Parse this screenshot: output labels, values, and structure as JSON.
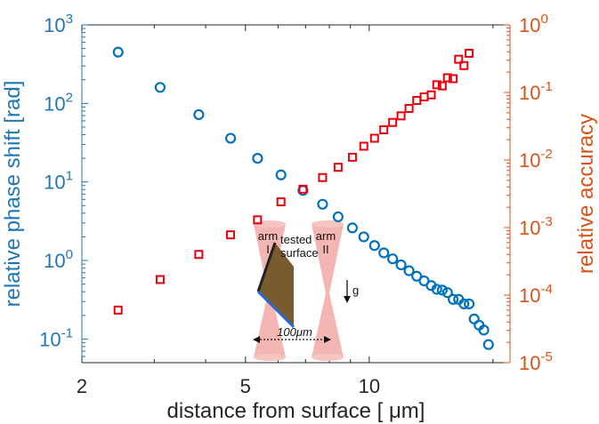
{
  "chart_data": {
    "type": "scatter",
    "x_scale": "log",
    "x_range": [
      2,
      22
    ],
    "xlabel": "distance from surface [ μm]",
    "x_ticks": [
      {
        "value": 2,
        "label": "2"
      },
      {
        "value": 5,
        "label": "5"
      },
      {
        "value": 10,
        "label": "10"
      }
    ],
    "left_axis": {
      "label": "relative phase shift [rad]",
      "scale": "log",
      "range": [
        0.05,
        1000
      ],
      "ticks": [
        {
          "value": 0.1,
          "base": "10",
          "exp": "-1"
        },
        {
          "value": 1,
          "base": "10",
          "exp": "0"
        },
        {
          "value": 10,
          "base": "10",
          "exp": "1"
        },
        {
          "value": 100,
          "base": "10",
          "exp": "2"
        },
        {
          "value": 1000,
          "base": "10",
          "exp": "3"
        }
      ],
      "color": "#1f77b4"
    },
    "right_axis": {
      "label": "relative accuracy",
      "scale": "log",
      "range": [
        1e-05,
        1
      ],
      "ticks": [
        {
          "value": 1e-05,
          "base": "10",
          "exp": "-5"
        },
        {
          "value": 0.0001,
          "base": "10",
          "exp": "-4"
        },
        {
          "value": 0.001,
          "base": "10",
          "exp": "-3"
        },
        {
          "value": 0.01,
          "base": "10",
          "exp": "-2"
        },
        {
          "value": 0.1,
          "base": "10",
          "exp": "-1"
        },
        {
          "value": 1,
          "base": "10",
          "exp": "0"
        }
      ],
      "color": "#d9541a"
    },
    "series": [
      {
        "axis": "left",
        "marker": "circle",
        "color": "#0072bd",
        "points": [
          [
            2.45,
            450
          ],
          [
            3.1,
            160
          ],
          [
            3.85,
            72
          ],
          [
            4.6,
            36
          ],
          [
            5.35,
            20
          ],
          [
            6.1,
            12.3
          ],
          [
            6.9,
            7.8
          ],
          [
            7.7,
            5.2
          ],
          [
            8.4,
            3.6
          ],
          [
            9.1,
            2.6
          ],
          [
            9.7,
            2.0
          ],
          [
            10.3,
            1.55
          ],
          [
            10.85,
            1.25
          ],
          [
            11.4,
            1.05
          ],
          [
            11.95,
            0.88
          ],
          [
            12.5,
            0.74
          ],
          [
            13.05,
            0.63
          ],
          [
            13.6,
            0.55
          ],
          [
            14.15,
            0.48
          ],
          [
            14.6,
            0.43
          ],
          [
            15.05,
            0.42
          ],
          [
            15.5,
            0.39
          ],
          [
            16.0,
            0.32
          ],
          [
            16.5,
            0.32
          ],
          [
            17.0,
            0.28
          ],
          [
            17.5,
            0.28
          ],
          [
            18.0,
            0.18
          ],
          [
            18.5,
            0.15
          ],
          [
            19.0,
            0.13
          ],
          [
            19.5,
            0.085
          ]
        ]
      },
      {
        "axis": "right",
        "marker": "square",
        "color": "#e8000b",
        "points": [
          [
            2.45,
            6e-05
          ],
          [
            3.1,
            0.00017
          ],
          [
            3.85,
            0.0004
          ],
          [
            4.6,
            0.00078
          ],
          [
            5.35,
            0.0013
          ],
          [
            6.1,
            0.0024
          ],
          [
            6.9,
            0.0037
          ],
          [
            7.7,
            0.0055
          ],
          [
            8.4,
            0.0078
          ],
          [
            9.1,
            0.011
          ],
          [
            9.7,
            0.016
          ],
          [
            10.3,
            0.021
          ],
          [
            10.85,
            0.028
          ],
          [
            11.4,
            0.036
          ],
          [
            11.95,
            0.045
          ],
          [
            12.5,
            0.058
          ],
          [
            13.05,
            0.076
          ],
          [
            13.6,
            0.086
          ],
          [
            14.15,
            0.092
          ],
          [
            14.6,
            0.13
          ],
          [
            15.05,
            0.125
          ],
          [
            15.5,
            0.165
          ],
          [
            16.0,
            0.16
          ],
          [
            16.5,
            0.31
          ],
          [
            17.0,
            0.25
          ],
          [
            17.5,
            0.38
          ]
        ]
      }
    ]
  },
  "inset": {
    "arm1_label": "arm\nI",
    "arm2_label": "arm\nII",
    "tested_surface_label": "tested\nsurface",
    "gravity_label": "g",
    "spacing_label": "100μm"
  },
  "colors": {
    "beam": "#f2a9a4",
    "surface_fill": "#7a5a2f"
  }
}
